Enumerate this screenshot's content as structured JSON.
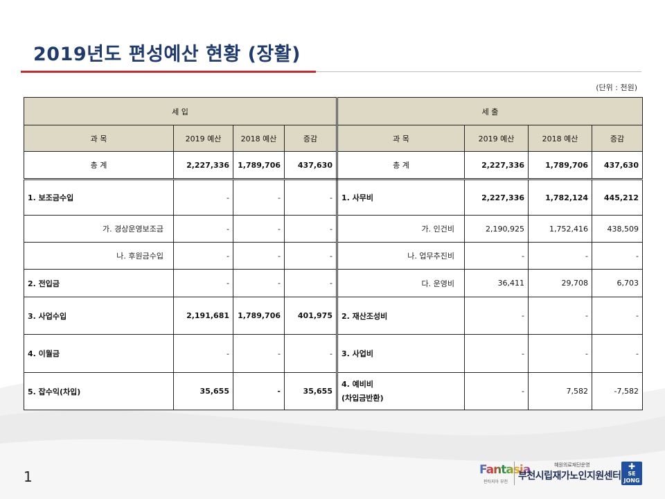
{
  "title": "2019년도 편성예산 현황 (장활)",
  "unit": "(단위 : 천원)",
  "header": {
    "income": "세 입",
    "expense": "세 출",
    "subject": "과 목",
    "y2019": "2019 예산",
    "y2018": "2018 예산",
    "change": "증감"
  },
  "total": {
    "income_label": "총 계",
    "income_2019": "2,227,336",
    "income_2018": "1,789,706",
    "income_change": "437,630",
    "expense_label": "총 계",
    "expense_2019": "2,227,336",
    "expense_2018": "1,789,706",
    "expense_change": "437,630"
  },
  "rows": [
    {
      "il": "1. 보조금수입",
      "i19": "-",
      "i18": "-",
      "ic": "-",
      "el": "1. 사무비",
      "e19": "2,227,336",
      "e18": "1,782,124",
      "ec": "445,212"
    },
    {
      "il": "가. 경상운영보조금",
      "i19": "-",
      "i18": "-",
      "ic": "-",
      "el": "가. 인건비",
      "e19": "2,190,925",
      "e18": "1,752,416",
      "ec": "438,509"
    },
    {
      "il": "나. 후원금수입",
      "i19": "-",
      "i18": "-",
      "ic": "-",
      "el": "나. 업무추진비",
      "e19": "-",
      "e18": "-",
      "ec": "-"
    },
    {
      "il": "2. 전입금",
      "i19": "-",
      "i18": "-",
      "ic": "-",
      "el": "다. 운영비",
      "e19": "36,411",
      "e18": "29,708",
      "ec": "6,703"
    },
    {
      "il": "3. 사업수입",
      "i19": "2,191,681",
      "i18": "1,789,706",
      "ic": "401,975",
      "el": "2. 재산조성비",
      "e19": "-",
      "e18": "-",
      "ec": "-"
    },
    {
      "il": "4. 이월금",
      "i19": "-",
      "i18": "-",
      "ic": "-",
      "el": "3. 사업비",
      "e19": "-",
      "e18": "-",
      "ec": "-"
    },
    {
      "il": "5. 잡수익(차입)",
      "i19": "35,655",
      "i18": "-",
      "ic": "35,655",
      "el": "4. 예비비",
      "el2": "(차입금반환)",
      "e19": "-",
      "e18": "7,582",
      "ec": "-7,582"
    }
  ],
  "page_number": "1",
  "logo": {
    "fantasia": "Fantasia",
    "fantasia_sub": "판타지아 부천",
    "org_small": "혜원의료재단운영",
    "org_main": "부천시립재가노인지원센터",
    "sejong_line1": "SE",
    "sejong_line2": "JONG"
  },
  "colors": {
    "title": "#1f3a6e",
    "title_rule": "#cc2a2a",
    "header_fill": "#ddd9c4",
    "logo_blue": "#1e4fa3"
  }
}
